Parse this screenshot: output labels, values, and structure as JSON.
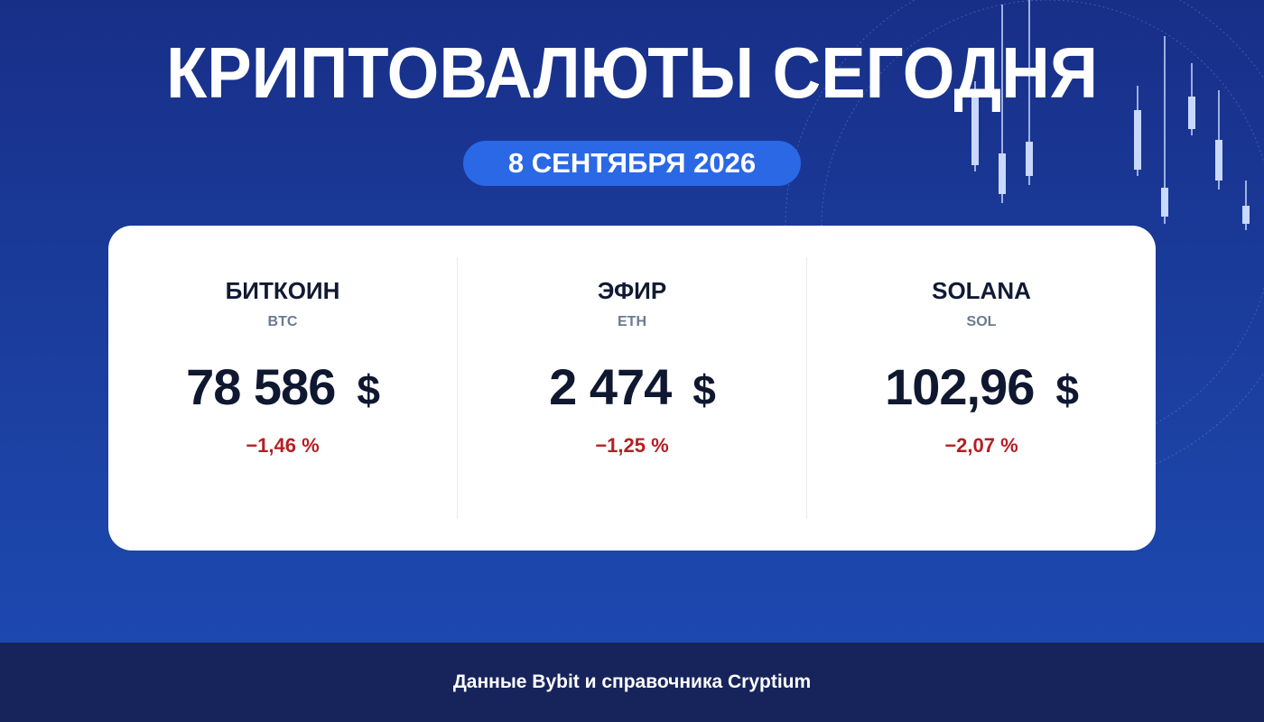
{
  "header": {
    "title": "КРИПТОВАЛЮТЫ СЕГОДНЯ",
    "date": "8 СЕНТЯБРЯ 2026"
  },
  "cards": [
    {
      "name": "БИТКОИН",
      "ticker": "BTC",
      "price": "78 586",
      "currency": "$",
      "change": "−1,46 %"
    },
    {
      "name": "ЭФИР",
      "ticker": "ETH",
      "price": "2 474",
      "currency": "$",
      "change": "−1,25 %"
    },
    {
      "name": "SOLANA",
      "ticker": "SOL",
      "price": "102,96",
      "currency": "$",
      "change": "−2,07 %"
    }
  ],
  "footer": {
    "source": "Данные Bybit и справочника Cryptium"
  }
}
